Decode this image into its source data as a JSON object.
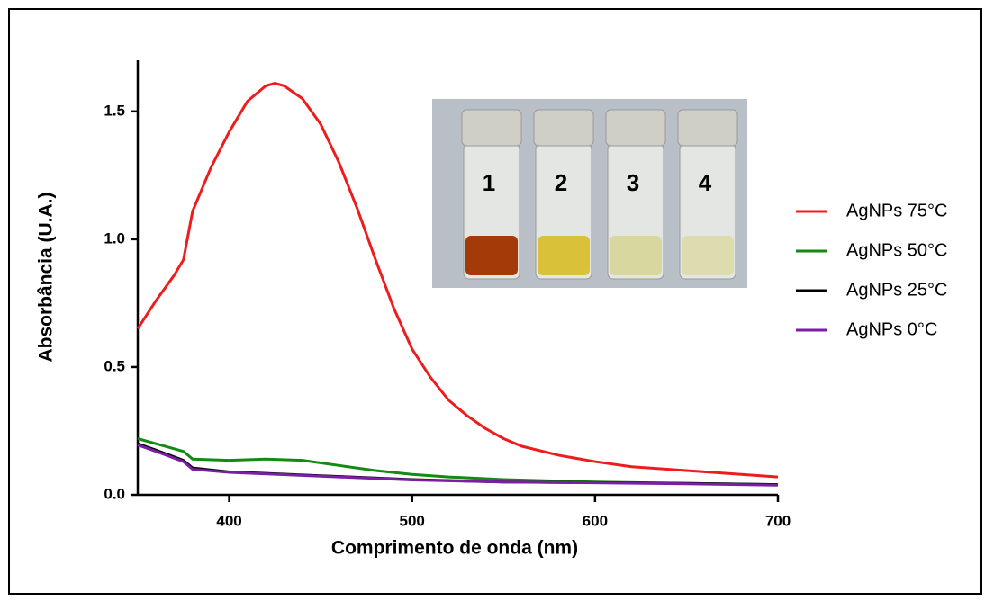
{
  "chart_data": {
    "type": "line",
    "xlabel": "Comprimento de onda (nm)",
    "ylabel": "Absorbância (U.A.)",
    "xlim": [
      350,
      700
    ],
    "ylim": [
      0,
      1.7
    ],
    "xticks": [
      400,
      500,
      600,
      700
    ],
    "yticks": [
      {
        "value": 0,
        "label": "0.0"
      },
      0.5,
      {
        "value": 1,
        "label": "1.0"
      },
      1.5
    ],
    "legend": "right",
    "inset_labels": [
      "1",
      "2",
      "3",
      "4"
    ],
    "series": [
      {
        "name": "AgNPs 75°C",
        "color": "#ee1c1c",
        "x": [
          350,
          360,
          370,
          375,
          380,
          390,
          400,
          410,
          420,
          425,
          430,
          440,
          450,
          460,
          470,
          480,
          490,
          500,
          510,
          520,
          530,
          540,
          550,
          560,
          580,
          600,
          620,
          650,
          680,
          700
        ],
        "values": [
          0.65,
          0.76,
          0.86,
          0.92,
          1.11,
          1.28,
          1.42,
          1.54,
          1.6,
          1.61,
          1.6,
          1.55,
          1.45,
          1.3,
          1.12,
          0.92,
          0.73,
          0.57,
          0.46,
          0.37,
          0.31,
          0.26,
          0.22,
          0.19,
          0.155,
          0.13,
          0.11,
          0.095,
          0.08,
          0.07
        ]
      },
      {
        "name": "AgNPs 50°C",
        "color": "#138a13",
        "x": [
          350,
          360,
          375,
          380,
          400,
          420,
          440,
          460,
          480,
          500,
          520,
          550,
          600,
          650,
          700
        ],
        "values": [
          0.22,
          0.2,
          0.17,
          0.14,
          0.135,
          0.14,
          0.135,
          0.115,
          0.095,
          0.08,
          0.07,
          0.06,
          0.05,
          0.045,
          0.04
        ]
      },
      {
        "name": "AgNPs 25°C",
        "color": "#000000",
        "x": [
          350,
          360,
          375,
          380,
          400,
          450,
          500,
          550,
          600,
          650,
          700
        ],
        "values": [
          0.2,
          0.175,
          0.135,
          0.105,
          0.09,
          0.075,
          0.06,
          0.05,
          0.048,
          0.045,
          0.04
        ]
      },
      {
        "name": "AgNPs 0°C",
        "color": "#7b1fa2",
        "x": [
          350,
          360,
          375,
          380,
          400,
          450,
          500,
          550,
          600,
          650,
          700
        ],
        "values": [
          0.195,
          0.17,
          0.13,
          0.1,
          0.088,
          0.073,
          0.058,
          0.05,
          0.047,
          0.043,
          0.038
        ]
      }
    ]
  }
}
